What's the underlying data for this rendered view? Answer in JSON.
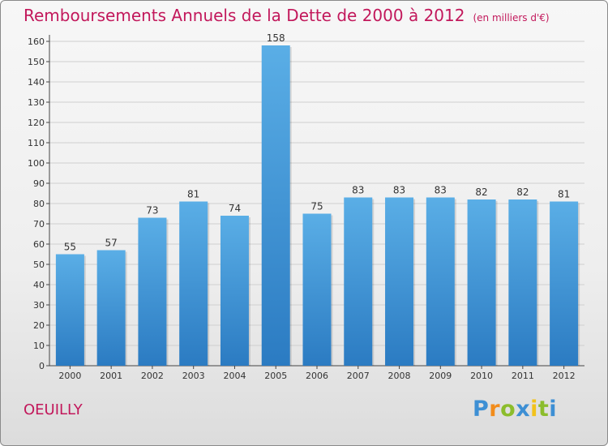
{
  "header": {
    "title": "Remboursements Annuels de la Dette de 2000 à 2012",
    "unit": "(en milliers d'€)"
  },
  "footer": {
    "commune": "OEUILLY"
  },
  "logo": {
    "text": "Proxiti",
    "letters": [
      {
        "char": "P",
        "color": "#3d8fd4"
      },
      {
        "char": "r",
        "color": "#f28c1b"
      },
      {
        "char": "o",
        "color": "#8cbd2c"
      },
      {
        "char": "x",
        "color": "#3d8fd4"
      },
      {
        "char": "i",
        "color": "#f2c21b"
      },
      {
        "char": "t",
        "color": "#8cbd2c"
      },
      {
        "char": "i",
        "color": "#3d8fd4"
      }
    ]
  },
  "colors": {
    "title": "#c2185b",
    "bar_top": "#5aaee6",
    "bar_bottom": "#2b7bc2",
    "grid": "#cfcfcf",
    "axis": "#444444"
  },
  "chart_data": {
    "type": "bar",
    "title": "Remboursements Annuels de la Dette de 2000 à 2012",
    "xlabel": "",
    "ylabel": "",
    "categories": [
      "2000",
      "2001",
      "2002",
      "2003",
      "2004",
      "2005",
      "2006",
      "2007",
      "2008",
      "2009",
      "2010",
      "2011",
      "2012"
    ],
    "values": [
      55,
      57,
      73,
      81,
      74,
      158,
      75,
      83,
      83,
      83,
      82,
      82,
      81
    ],
    "ylim": [
      0,
      160
    ],
    "yticks": [
      0,
      10,
      20,
      30,
      40,
      50,
      60,
      70,
      80,
      90,
      100,
      110,
      120,
      130,
      140,
      150,
      160
    ],
    "grid": true,
    "legend": "none"
  }
}
